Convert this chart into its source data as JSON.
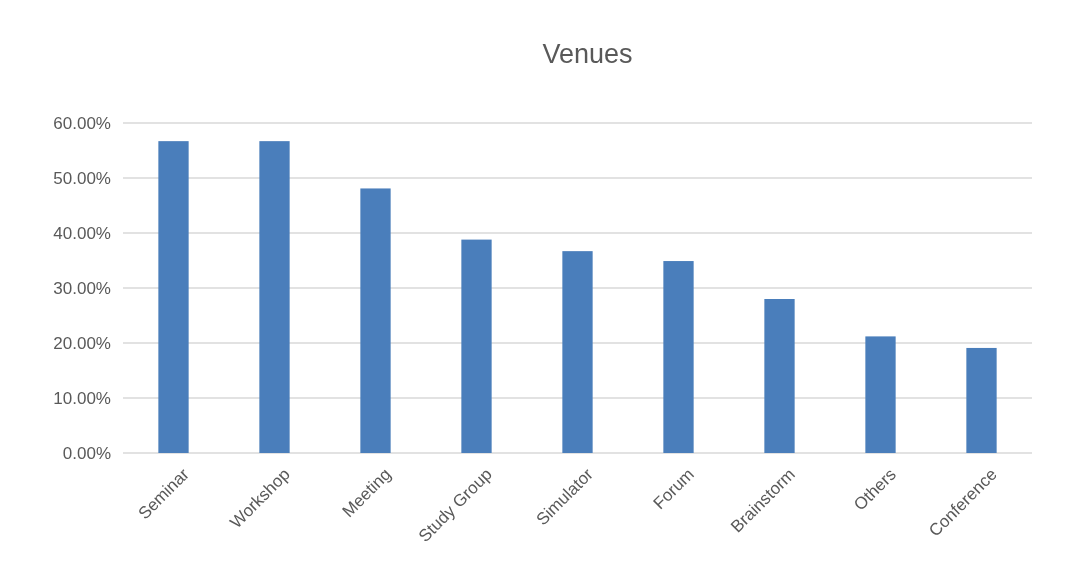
{
  "chart_data": {
    "type": "bar",
    "title": "Venues",
    "categories": [
      "Seminar",
      "Workshop",
      "Meeting",
      "Study Group",
      "Simulator",
      "Forum",
      "Brainstorm",
      "Others",
      "Conference"
    ],
    "values": [
      56.7,
      56.7,
      48.1,
      38.8,
      36.7,
      34.9,
      28.0,
      21.2,
      19.1
    ],
    "color": "#4a7ebb",
    "ylim": [
      0,
      60
    ],
    "yticks": [
      {
        "value": 0,
        "label": "0.00%"
      },
      {
        "value": 10,
        "label": "10.00%"
      },
      {
        "value": 20,
        "label": "20.00%"
      },
      {
        "value": 30,
        "label": "30.00%"
      },
      {
        "value": 40,
        "label": "40.00%"
      },
      {
        "value": 50,
        "label": "50.00%"
      },
      {
        "value": 60,
        "label": "60.00%"
      }
    ],
    "grid": "y"
  }
}
